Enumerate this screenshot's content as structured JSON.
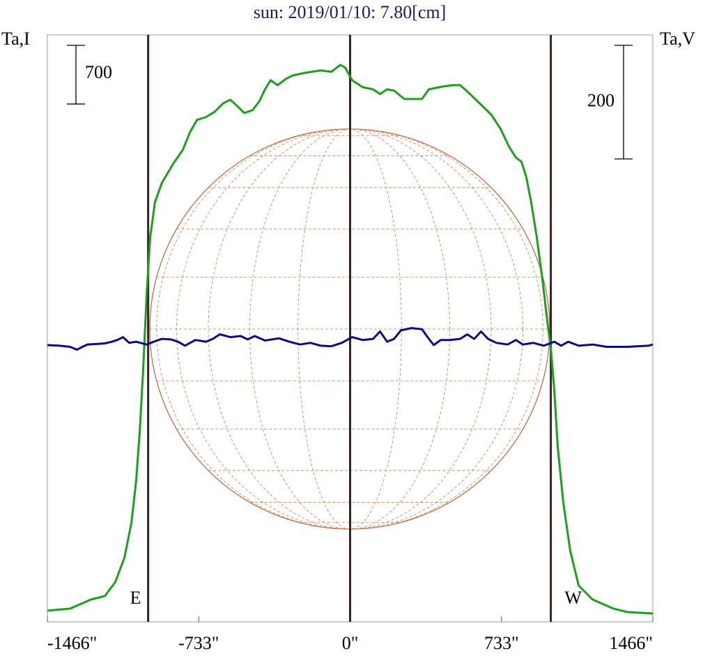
{
  "chart_data": {
    "type": "line",
    "title": "sun: 2019/01/10: 7.80[cm]",
    "y_label": "Ta,I",
    "y2_label": "Ta,V",
    "xlim": [
      -1466,
      1466
    ],
    "xticks": [
      {
        "value": -1466,
        "label": "-1466\""
      },
      {
        "value": -733,
        "label": "-733\""
      },
      {
        "value": 0,
        "label": "0\""
      },
      {
        "value": 733,
        "label": "733\""
      },
      {
        "value": 1466,
        "label": "1466\""
      }
    ],
    "ylim": [
      0,
      7000
    ],
    "y2lim": [
      -486,
      547
    ],
    "y_scale_bar": 700,
    "y2_scale_bar": 200,
    "vlines": [
      -978,
      0,
      972
    ],
    "vline_color": "#3c1f1f",
    "annotations": [
      {
        "text": "E",
        "x": -1039
      },
      {
        "text": "W",
        "x": 1080
      }
    ],
    "series": [
      {
        "name": "I",
        "color": "#1aa01a",
        "x": [
          -1466,
          -1356,
          -1255,
          -1188,
          -1137,
          -1093,
          -1059,
          -1036,
          -1019,
          -1002,
          -985,
          -968,
          -945,
          -911,
          -857,
          -810,
          -776,
          -742,
          -698,
          -655,
          -614,
          -580,
          -547,
          -513,
          -472,
          -439,
          -412,
          -385,
          -351,
          -310,
          -277,
          -209,
          -142,
          -91,
          -47,
          -24,
          10,
          61,
          111,
          145,
          179,
          213,
          263,
          348,
          381,
          449,
          499,
          533,
          574,
          634,
          685,
          729,
          769,
          803,
          830,
          854,
          877,
          904,
          931,
          955,
          972,
          989,
          1005,
          1032,
          1066,
          1107,
          1174,
          1275,
          1343,
          1466
        ],
        "values": [
          133,
          158,
          266,
          308,
          474,
          765,
          1180,
          1679,
          2261,
          3009,
          3924,
          4589,
          5004,
          5237,
          5462,
          5628,
          5836,
          5985,
          6019,
          6085,
          6185,
          6226,
          6152,
          6068,
          6102,
          6210,
          6351,
          6459,
          6401,
          6476,
          6517,
          6551,
          6576,
          6559,
          6642,
          6609,
          6459,
          6376,
          6351,
          6293,
          6351,
          6335,
          6235,
          6235,
          6351,
          6384,
          6401,
          6401,
          6310,
          6168,
          6044,
          5877,
          5669,
          5536,
          5487,
          5295,
          5004,
          4589,
          4090,
          3591,
          3259,
          2760,
          2095,
          1430,
          848,
          432,
          266,
          158,
          116,
          100
        ]
      },
      {
        "name": "V",
        "color": "#0a0a8c",
        "axis": "y2",
        "x": [
          -1466,
          -1407,
          -1356,
          -1323,
          -1296,
          -1272,
          -1188,
          -1154,
          -1127,
          -1100,
          -1070,
          -1036,
          -985,
          -951,
          -911,
          -867,
          -833,
          -800,
          -749,
          -698,
          -665,
          -631,
          -580,
          -530,
          -496,
          -462,
          -412,
          -344,
          -294,
          -243,
          -192,
          -142,
          -91,
          -40,
          10,
          61,
          111,
          145,
          179,
          213,
          246,
          297,
          348,
          371,
          405,
          439,
          482,
          533,
          567,
          601,
          634,
          668,
          709,
          763,
          803,
          837,
          887,
          938,
          989,
          1022,
          1056,
          1107,
          1174,
          1242,
          1343,
          1444,
          1466
        ],
        "values": [
          1,
          0,
          -2,
          -7,
          -2,
          2,
          4,
          7,
          10,
          15,
          5,
          7,
          2,
          7,
          12,
          11,
          7,
          0,
          10,
          7,
          12,
          20,
          15,
          17,
          11,
          17,
          9,
          13,
          7,
          2,
          5,
          0,
          -1,
          5,
          15,
          10,
          12,
          25,
          7,
          12,
          27,
          31,
          29,
          17,
          1,
          10,
          10,
          12,
          20,
          12,
          25,
          12,
          5,
          2,
          10,
          2,
          5,
          0,
          7,
          0,
          7,
          0,
          2,
          -2,
          -2,
          0,
          2
        ]
      }
    ]
  }
}
